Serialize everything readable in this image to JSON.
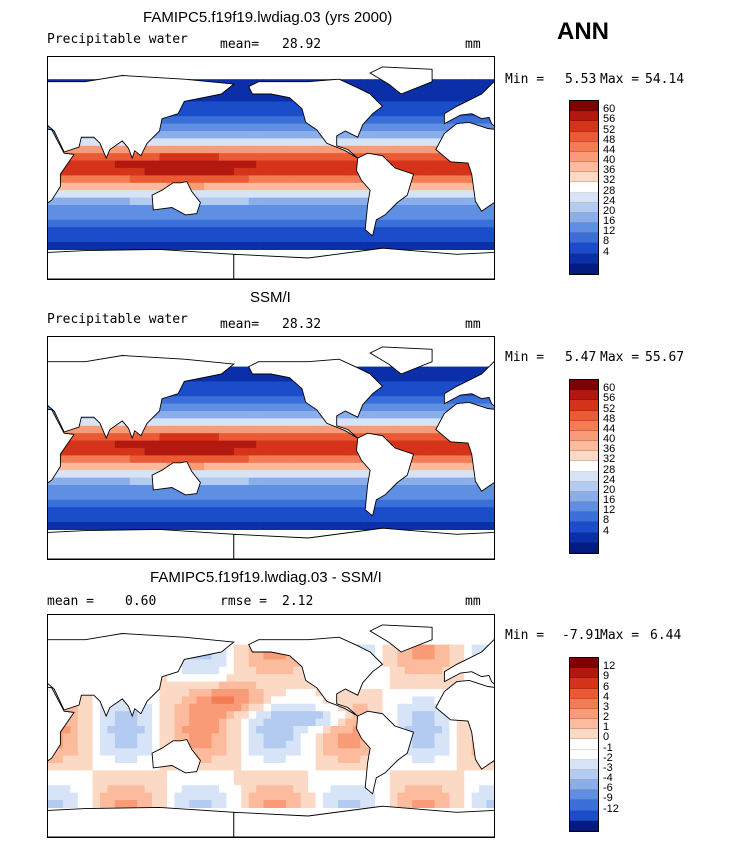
{
  "season": "ANN",
  "palette_positive": [
    "#f9e0d3",
    "#fcc7ad",
    "#fbaa86",
    "#f7875f",
    "#ee623c",
    "#dc3b1f",
    "#c5200d",
    "#a50f15",
    "#7f0000"
  ],
  "palette_negative": [
    "#dde9f8",
    "#bdd2f2",
    "#96b7ec",
    "#6a98e6",
    "#3f78dc",
    "#2058d0",
    "#0d3cb8",
    "#031f90",
    "#00106b"
  ],
  "panels": [
    {
      "title": "FAMIPC5.f19f19.lwdiag.03 (yrs 2000)",
      "left_label": "Precipitable water",
      "mean_label": "mean=",
      "mean_value": "28.92",
      "units": "mm",
      "min_label": "Min =",
      "min_value": "5.53",
      "max_label": "Max =",
      "max_value": "54.14",
      "colorbar_ticks": [
        "60",
        "56",
        "52",
        "48",
        "44",
        "40",
        "36",
        "32",
        "28",
        "24",
        "20",
        "16",
        "12",
        "8",
        "4"
      ],
      "colorbar_colors": [
        "#7f0000",
        "#b2180e",
        "#d5331a",
        "#ea5a35",
        "#f47c54",
        "#f99b77",
        "#fbbb9c",
        "#fcd9c4",
        "#ffffff",
        "#d7e4f7",
        "#b3cbf0",
        "#8aaeea",
        "#5f8fe2",
        "#3a6ed9",
        "#1b4dcb",
        "#0a2fa8",
        "#001c80"
      ]
    },
    {
      "title": "SSM/I",
      "left_label": "Precipitable water",
      "mean_label": "mean=",
      "mean_value": "28.32",
      "units": "mm",
      "min_label": "Min =",
      "min_value": "5.47",
      "max_label": "Max =",
      "max_value": "55.67",
      "colorbar_ticks": [
        "60",
        "56",
        "52",
        "48",
        "44",
        "40",
        "36",
        "32",
        "28",
        "24",
        "20",
        "16",
        "12",
        "8",
        "4"
      ],
      "colorbar_colors": [
        "#7f0000",
        "#b2180e",
        "#d5331a",
        "#ea5a35",
        "#f47c54",
        "#f99b77",
        "#fbbb9c",
        "#fcd9c4",
        "#ffffff",
        "#d7e4f7",
        "#b3cbf0",
        "#8aaeea",
        "#5f8fe2",
        "#3a6ed9",
        "#1b4dcb",
        "#0a2fa8",
        "#001c80"
      ]
    },
    {
      "title": "FAMIPC5.f19f19.lwdiag.03 - SSM/I",
      "left_label": "mean =",
      "mean_label": "0.60",
      "mean_value": "",
      "rmse_label": "rmse =",
      "rmse_value": "2.12",
      "units": "mm",
      "min_label": "Min =",
      "min_value": "-7.91",
      "max_label": "Max =",
      "max_value": "6.44",
      "colorbar_ticks": [
        "12",
        "9",
        "6",
        "4",
        "3",
        "2",
        "1",
        "0",
        "-1",
        "-2",
        "-3",
        "-4",
        "-6",
        "-9",
        "-12"
      ],
      "colorbar_colors": [
        "#7f0000",
        "#b2180e",
        "#d5331a",
        "#ea5a35",
        "#f47c54",
        "#f99b77",
        "#fbbb9c",
        "#fcd9c4",
        "#ffffff",
        "#ffffff",
        "#d7e4f7",
        "#b3cbf0",
        "#8aaeea",
        "#5f8fe2",
        "#3a6ed9",
        "#1b4dcb",
        "#001c80"
      ]
    }
  ],
  "chart_data": [
    {
      "type": "heatmap",
      "title": "FAMIPC5.f19f19.lwdiag.03 (yrs 2000)",
      "variable": "Precipitable water",
      "units": "mm",
      "mean": 28.92,
      "min": 5.53,
      "max": 54.14,
      "colorbar_levels": [
        4,
        8,
        12,
        16,
        20,
        24,
        28,
        32,
        36,
        40,
        44,
        48,
        52,
        56,
        60
      ]
    },
    {
      "type": "heatmap",
      "title": "SSM/I",
      "variable": "Precipitable water",
      "units": "mm",
      "mean": 28.32,
      "min": 5.47,
      "max": 55.67,
      "colorbar_levels": [
        4,
        8,
        12,
        16,
        20,
        24,
        28,
        32,
        36,
        40,
        44,
        48,
        52,
        56,
        60
      ]
    },
    {
      "type": "heatmap",
      "title": "FAMIPC5.f19f19.lwdiag.03 - SSM/I",
      "units": "mm",
      "mean": 0.6,
      "rmse": 2.12,
      "min": -7.91,
      "max": 6.44,
      "colorbar_levels": [
        -12,
        -9,
        -6,
        -4,
        -3,
        -2,
        -1,
        0,
        1,
        2,
        3,
        4,
        6,
        9,
        12
      ]
    }
  ]
}
